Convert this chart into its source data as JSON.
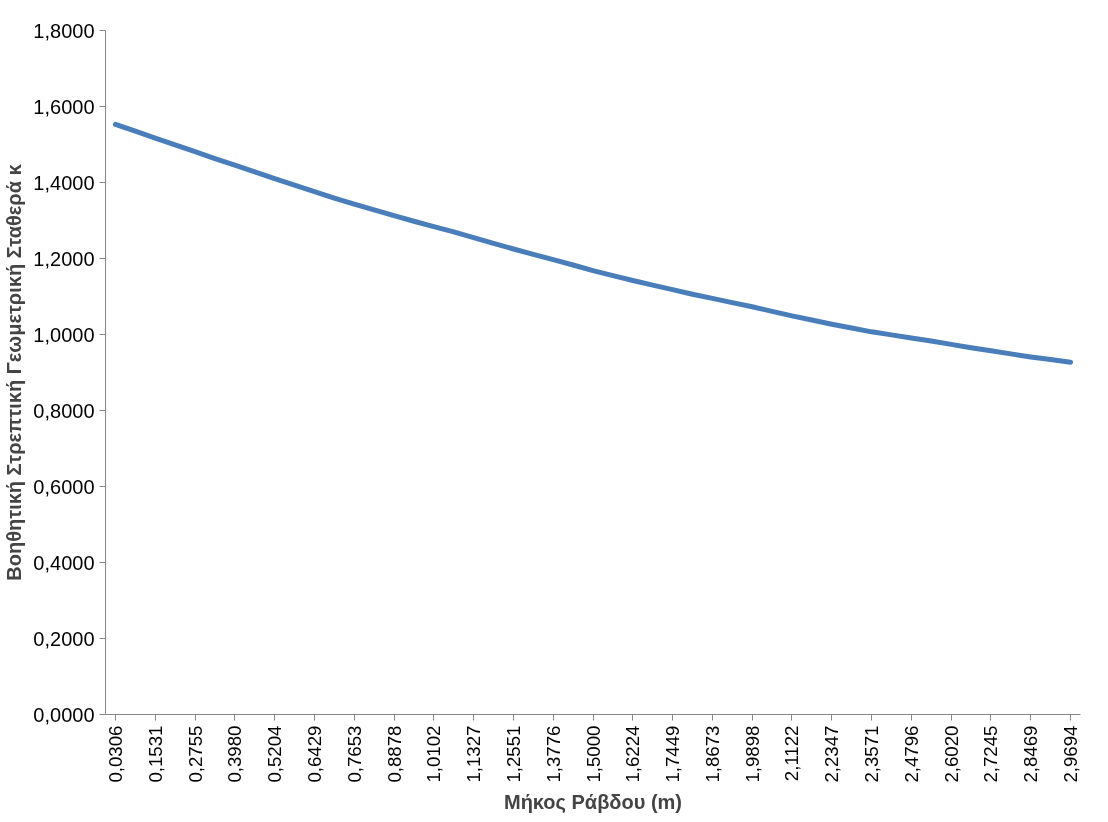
{
  "chart_data": {
    "type": "line",
    "xlabel": "Μήκος Ράβδου (m)",
    "ylabel": "Βοηθητική Στρεπτική Γεωμετρική Σταθερά κ",
    "categories": [
      "0,0306",
      null,
      "0,1531",
      null,
      "0,2755",
      null,
      "0,3980",
      null,
      "0,5204",
      null,
      "0,6429",
      null,
      "0,7653",
      null,
      "0,8878",
      null,
      "1,0102",
      null,
      "1,1327",
      null,
      "1,2551",
      null,
      "1,3776",
      null,
      "1,5000",
      null,
      "1,6224",
      null,
      "1,7449",
      null,
      "1,8673",
      null,
      "1,9898",
      null,
      "2,1122",
      null,
      "2,2347",
      null,
      "2,3571",
      null,
      "2,4796",
      null,
      "2,6020",
      null,
      "2,7245",
      null,
      "2,8469",
      null,
      "2,9694"
    ],
    "series": [
      {
        "color": "#4a7ebb",
        "values": [
          1.553,
          1.535,
          1.517,
          1.499,
          1.481,
          1.463,
          1.446,
          1.428,
          1.41,
          1.393,
          1.376,
          1.359,
          1.343,
          1.328,
          1.313,
          1.298,
          1.284,
          1.27,
          1.255,
          1.24,
          1.225,
          1.211,
          1.197,
          1.183,
          1.168,
          1.155,
          1.142,
          1.13,
          1.118,
          1.106,
          1.095,
          1.084,
          1.073,
          1.061,
          1.049,
          1.038,
          1.027,
          1.017,
          1.007,
          0.999,
          0.991,
          0.983,
          0.974,
          0.965,
          0.957,
          0.949,
          0.941,
          0.934,
          0.927
        ]
      }
    ],
    "ylim": [
      0,
      1.8
    ],
    "yticks": [
      {
        "value": 0,
        "label": "0,0000"
      },
      {
        "value": 0.2,
        "label": "0,2000"
      },
      {
        "value": 0.4,
        "label": "0,4000"
      },
      {
        "value": 0.6,
        "label": "0,6000"
      },
      {
        "value": 0.8,
        "label": "0,8000"
      },
      {
        "value": 1.0,
        "label": "1,0000"
      },
      {
        "value": 1.2,
        "label": "1,2000"
      },
      {
        "value": 1.4,
        "label": "1,4000"
      },
      {
        "value": 1.6,
        "label": "1,6000"
      },
      {
        "value": 1.8,
        "label": "1,8000"
      }
    ],
    "grid": false,
    "marker": "none",
    "line_style": "solid"
  }
}
